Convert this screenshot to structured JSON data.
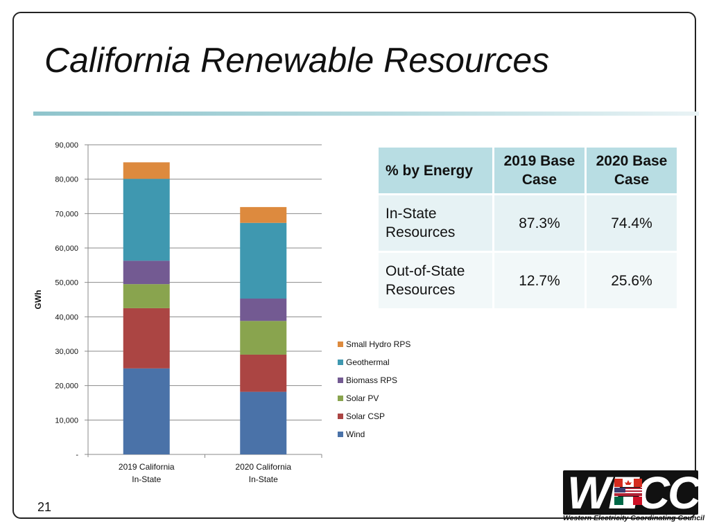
{
  "slide": {
    "title": "California Renewable Resources",
    "page_number": "21"
  },
  "chart_data": {
    "type": "bar",
    "stacked": true,
    "categories": [
      "2019 California In-State",
      "2020 California In-State"
    ],
    "category_lines": [
      [
        "2019 California",
        "In-State"
      ],
      [
        "2020 California",
        "In-State"
      ]
    ],
    "ylabel": "GWh",
    "xlabel": "",
    "ylim": [
      0,
      90000
    ],
    "ytick_values": [
      0,
      10000,
      20000,
      30000,
      40000,
      50000,
      60000,
      70000,
      80000,
      90000
    ],
    "ytick_labels": [
      "-",
      "10,000",
      "20,000",
      "30,000",
      "40,000",
      "50,000",
      "60,000",
      "70,000",
      "80,000",
      "90,000"
    ],
    "grid": true,
    "legend_position": "right",
    "series": [
      {
        "name": "Wind",
        "color": "#4a72a8",
        "values": [
          25000,
          18200
        ]
      },
      {
        "name": "Solar CSP",
        "color": "#ab4543",
        "values": [
          17500,
          10800
        ]
      },
      {
        "name": "Solar PV",
        "color": "#89a44e",
        "values": [
          7000,
          9800
        ]
      },
      {
        "name": "Biomass RPS",
        "color": "#735a92",
        "values": [
          6800,
          6500
        ]
      },
      {
        "name": "Geothermal",
        "color": "#3f98b0",
        "values": [
          23800,
          22000
        ]
      },
      {
        "name": "Small Hydro RPS",
        "color": "#dd8a3e",
        "values": [
          4800,
          4600
        ]
      }
    ]
  },
  "energy_table": {
    "headers": [
      "% by Energy",
      "2019 Base Case",
      "2020 Base Case"
    ],
    "header_lines": [
      [
        "% by Energy"
      ],
      [
        "2019 Base",
        "Case"
      ],
      [
        "2020 Base",
        "Case"
      ]
    ],
    "rows": [
      {
        "label_lines": [
          "In-State",
          "Resources"
        ],
        "v2019": "87.3%",
        "v2020": "74.4%"
      },
      {
        "label_lines": [
          "Out-of-State",
          "Resources"
        ],
        "v2019": "12.7%",
        "v2020": "25.6%"
      }
    ],
    "header_color": "#b8dde3"
  },
  "logo": {
    "letters": "WECC",
    "caption": "Western Electricity Coordinating Council"
  }
}
